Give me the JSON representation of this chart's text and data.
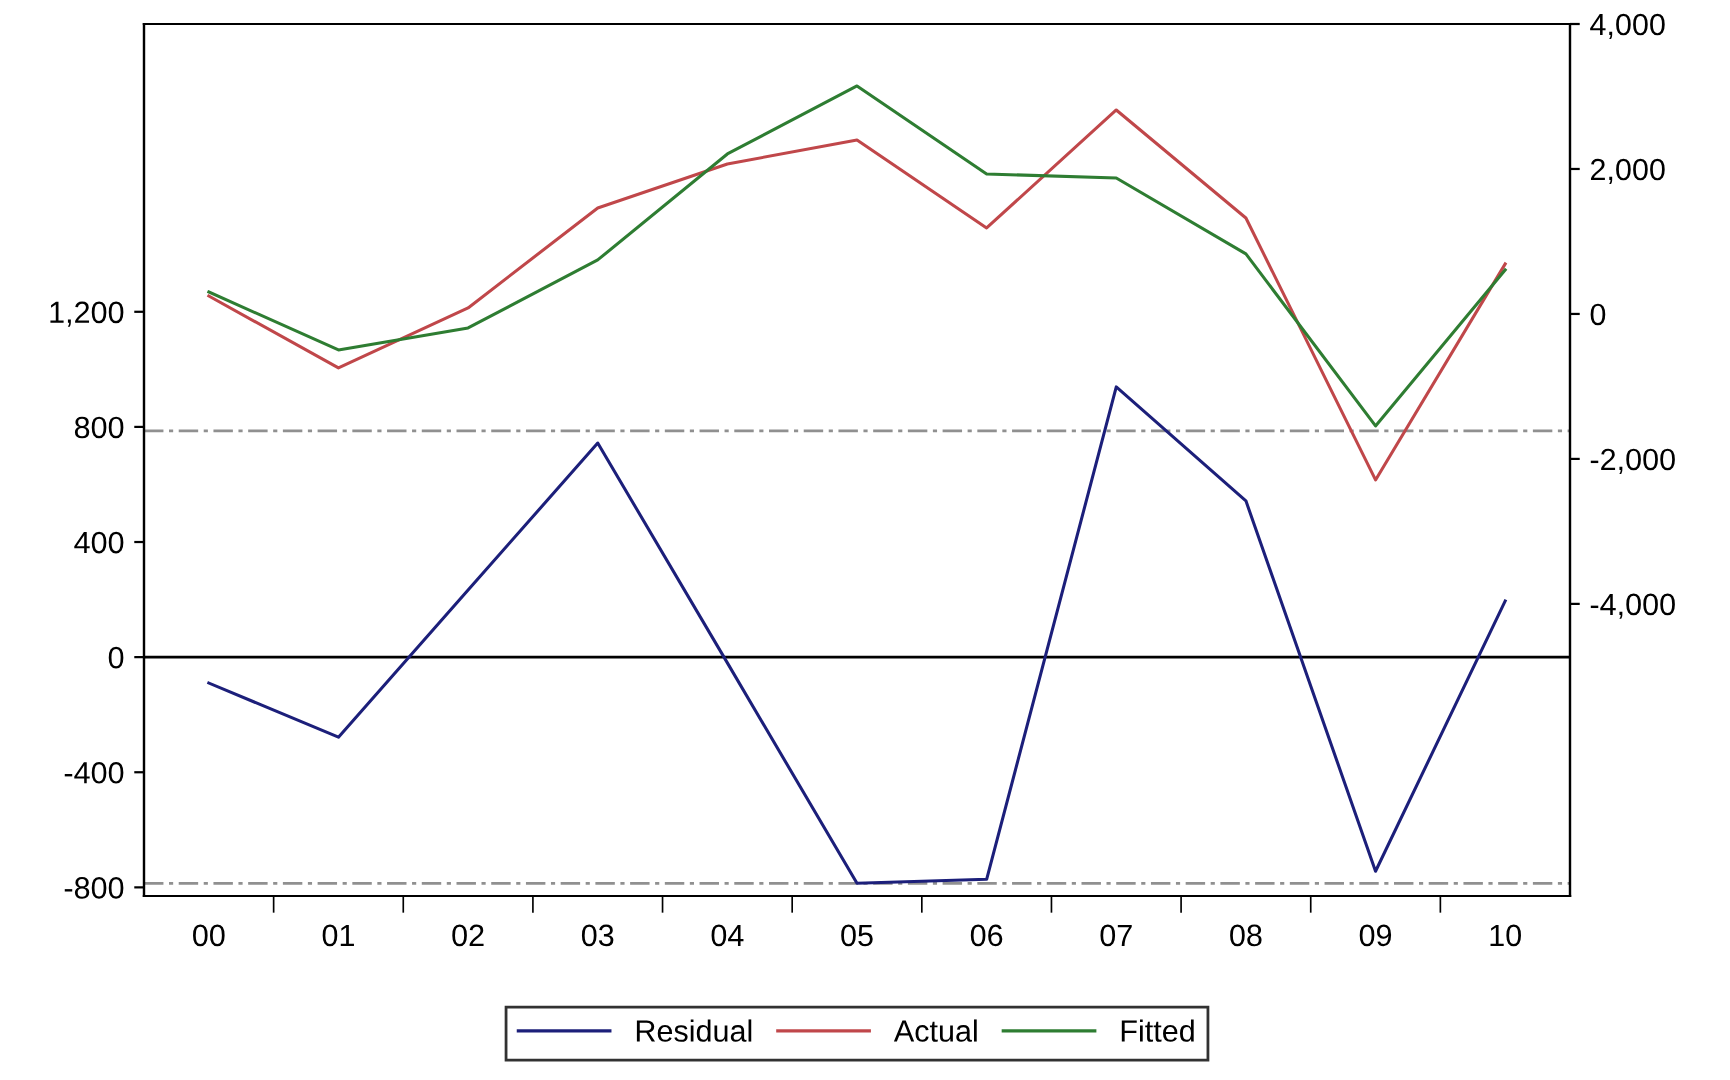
{
  "chart_data": {
    "type": "line",
    "categories": [
      "00",
      "01",
      "02",
      "03",
      "04",
      "05",
      "06",
      "07",
      "08",
      "09",
      "10"
    ],
    "series": [
      {
        "name": "Residual",
        "color": "#1c1f7a",
        "values": [
          -90,
          -278,
          233,
          744,
          -20,
          -786,
          -772,
          939,
          543,
          -744,
          195
        ]
      },
      {
        "name": "Actual",
        "color": "#c0474a",
        "axis": "y2",
        "values": [
          248,
          -745,
          83,
          1462,
          2069,
          2400,
          1186,
          2814,
          1324,
          -2290,
          690
        ]
      },
      {
        "name": "Fitted",
        "color": "#2e7d32",
        "axis": "y2",
        "values": [
          303,
          -497,
          -193,
          745,
          2207,
          3145,
          1931,
          1876,
          828,
          -1545,
          607
        ]
      }
    ],
    "ylim": [
      -830,
      2200
    ],
    "yticks": [
      -800,
      -400,
      0,
      400,
      800,
      {
        "value": 1200,
        "label": "1,200"
      }
    ],
    "y2lim": [
      -8030,
      4000
    ],
    "y2ticks": [
      {
        "value": -4000,
        "label": "-4,000"
      },
      {
        "value": -2000,
        "label": "-2,000"
      },
      0,
      {
        "value": 2000,
        "label": "2,000"
      },
      {
        "value": 4000,
        "label": "4,000"
      }
    ],
    "ref_lines": [
      {
        "axis": "y",
        "value": 0,
        "color": "#000000",
        "line_style": "solid"
      },
      {
        "axis": "y",
        "value": 786,
        "color": "#909090",
        "line_style": "dashed"
      },
      {
        "axis": "y",
        "value": -786,
        "color": "#909090",
        "line_style": "dashed"
      }
    ],
    "grid": false,
    "legend": "bottom",
    "line_style": "solid",
    "marker": "none"
  }
}
